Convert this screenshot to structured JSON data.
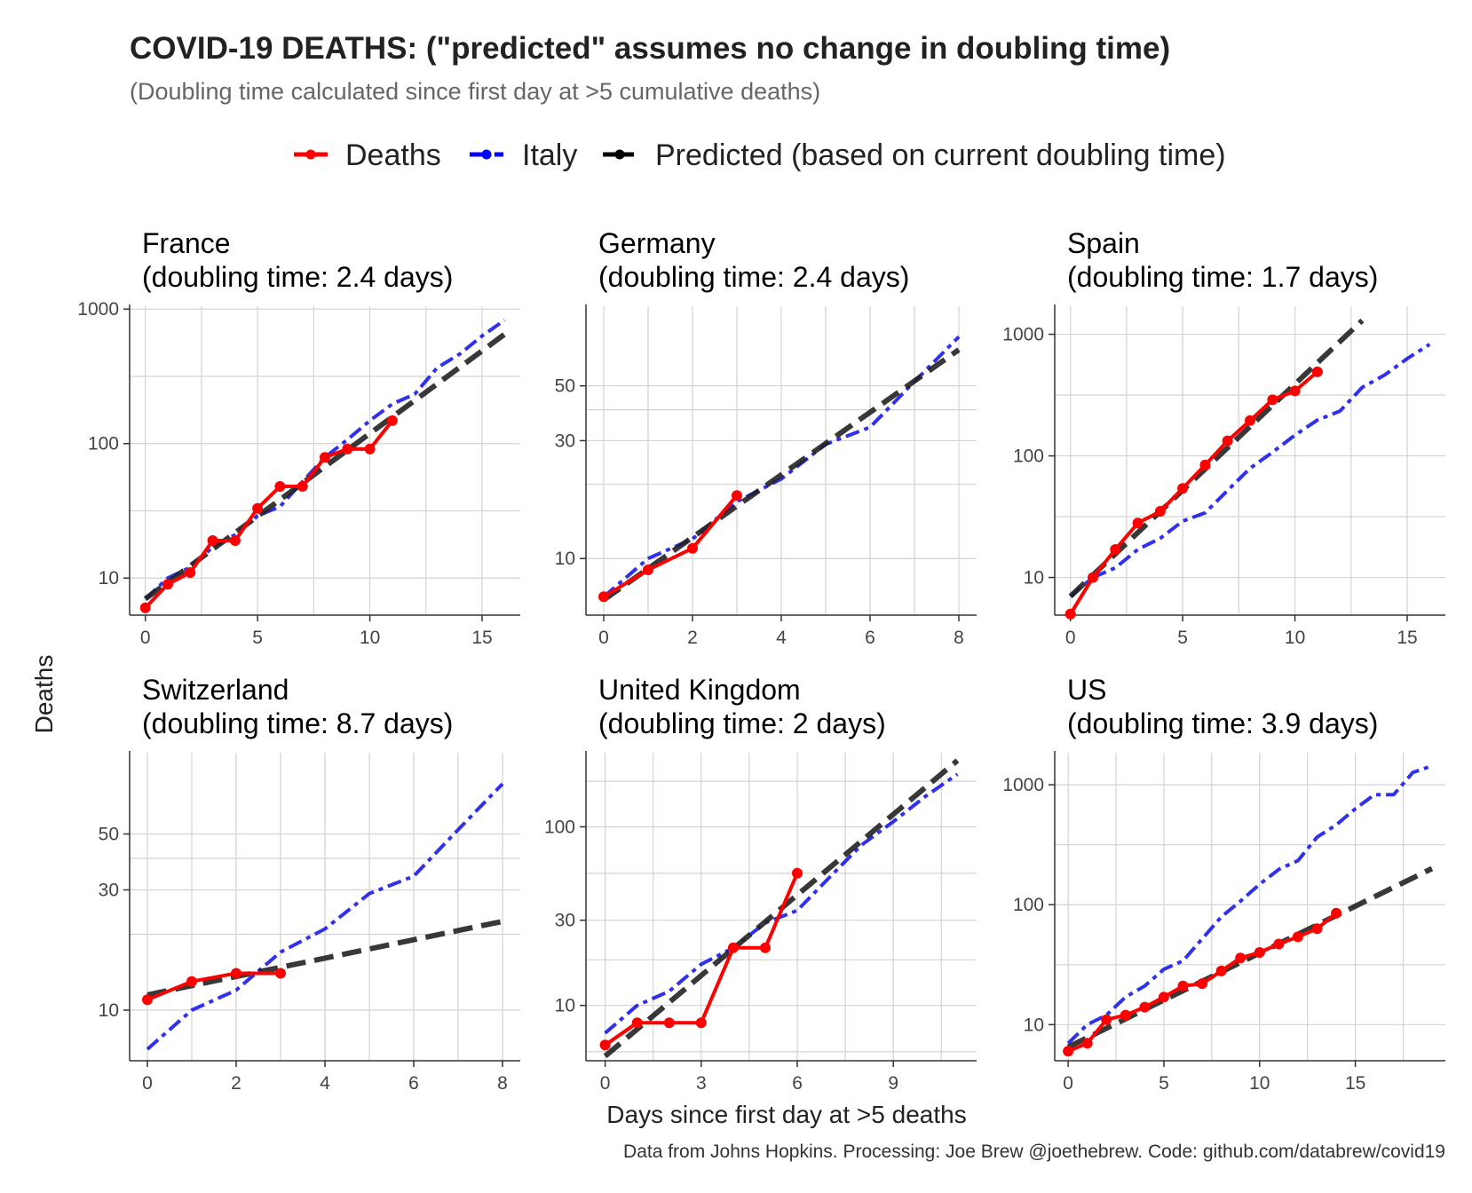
{
  "title": "COVID-19 DEATHS: (\"predicted\" assumes no change in doubling time)",
  "subtitle": "(Doubling time calculated since first day at >5 cumulative deaths)",
  "legend": [
    {
      "name": "Deaths",
      "color": "#ff0000",
      "dash": "solid"
    },
    {
      "name": "Italy",
      "color": "#0000ff",
      "dash": "dashdot"
    },
    {
      "name": "Predicted (based on current doubling time)",
      "color": "#000000",
      "dash": "dashed"
    }
  ],
  "xlabel": "Days since first day at >5 deaths",
  "ylabel": "Deaths",
  "caption": "Data from Johns Hopkins. Processing: Joe Brew @joethebrew. Code: github.com/databrew/covid19",
  "chart_data": [
    {
      "type": "line",
      "country": "France",
      "title_line1": "France",
      "title_line2": "(doubling time: 2.4 days)",
      "xlim": [
        -0.7,
        16.7
      ],
      "xticks": [
        0,
        5,
        10,
        15
      ],
      "ylog": true,
      "ylim": [
        5.3,
        1050
      ],
      "yticks": [
        10,
        100,
        1000
      ],
      "yticklabels": [
        "10",
        "100",
        "1000"
      ],
      "yminor": [
        31.6,
        316
      ],
      "series": [
        {
          "name": "Deaths",
          "x": [
            0,
            1,
            2,
            3,
            4,
            5,
            6,
            7,
            8,
            9,
            10,
            11
          ],
          "y": [
            6,
            9,
            11,
            19,
            19,
            33,
            48,
            48,
            79,
            91,
            91,
            148
          ]
        },
        {
          "name": "Italy",
          "x": [
            0,
            1,
            2,
            3,
            4,
            5,
            6,
            7,
            8,
            9,
            10,
            11,
            12,
            13,
            14,
            15,
            16
          ],
          "y": [
            7,
            10,
            12,
            17,
            21,
            29,
            34,
            52,
            79,
            107,
            148,
            197,
            233,
            366,
            463,
            631,
            827
          ]
        },
        {
          "name": "Predicted (based on current doubling time)",
          "x": [
            0,
            16
          ],
          "y": [
            7,
            650
          ]
        }
      ]
    },
    {
      "type": "line",
      "country": "Germany",
      "title_line1": "Germany",
      "title_line2": "(doubling time: 2.4 days)",
      "xlim": [
        -0.4,
        8.4
      ],
      "xticks": [
        0,
        2,
        4,
        6,
        8
      ],
      "ylog": true,
      "ylim": [
        5.9,
        105
      ],
      "yticks": [
        10,
        30,
        50
      ],
      "yticklabels": [
        "10",
        "30",
        "50"
      ],
      "yminor": [
        20,
        40
      ],
      "series": [
        {
          "name": "Deaths",
          "x": [
            0,
            1,
            2,
            3
          ],
          "y": [
            7,
            9,
            11,
            18
          ]
        },
        {
          "name": "Italy",
          "x": [
            0,
            1,
            2,
            3,
            4,
            5,
            6,
            7,
            8
          ],
          "y": [
            7,
            10,
            12,
            17,
            21,
            29,
            34,
            52,
            79
          ]
        },
        {
          "name": "Predicted (based on current doubling time)",
          "x": [
            0,
            8
          ],
          "y": [
            6.8,
            70
          ]
        }
      ]
    },
    {
      "type": "line",
      "country": "Spain",
      "title_line1": "Spain",
      "title_line2": "(doubling time: 1.7 days)",
      "xlim": [
        -0.7,
        16.7
      ],
      "xticks": [
        0,
        5,
        10,
        15
      ],
      "ylog": true,
      "ylim": [
        4.9,
        1700
      ],
      "yticks": [
        10,
        100,
        1000
      ],
      "yticklabels": [
        "10",
        "100",
        "1000"
      ],
      "yminor": [
        31.6,
        316
      ],
      "series": [
        {
          "name": "Deaths",
          "x": [
            0,
            1,
            2,
            3,
            4,
            5,
            6,
            7,
            8,
            9,
            10,
            11
          ],
          "y": [
            5,
            10,
            17,
            28,
            35,
            54,
            84,
            133,
            195,
            289,
            342,
            491
          ]
        },
        {
          "name": "Italy",
          "x": [
            0,
            1,
            2,
            3,
            4,
            5,
            6,
            7,
            8,
            9,
            10,
            11,
            12,
            13,
            14,
            15,
            16
          ],
          "y": [
            7,
            10,
            12,
            17,
            21,
            29,
            34,
            52,
            79,
            107,
            148,
            197,
            233,
            366,
            463,
            631,
            827
          ]
        },
        {
          "name": "Predicted (based on current doubling time)",
          "x": [
            0,
            13
          ],
          "y": [
            7,
            1300
          ]
        }
      ]
    },
    {
      "type": "line",
      "country": "Switzerland",
      "title_line1": "Switzerland",
      "title_line2": "(doubling time: 8.7 days)",
      "xlim": [
        -0.4,
        8.4
      ],
      "xticks": [
        0,
        2,
        4,
        6,
        8
      ],
      "ylog": true,
      "ylim": [
        6.3,
        105
      ],
      "yticks": [
        10,
        30,
        50
      ],
      "yticklabels": [
        "10",
        "30",
        "50"
      ],
      "yminor": [
        20,
        40
      ],
      "series": [
        {
          "name": "Deaths",
          "x": [
            0,
            1,
            2,
            3
          ],
          "y": [
            11,
            13,
            14,
            14
          ]
        },
        {
          "name": "Italy",
          "x": [
            0,
            1,
            2,
            3,
            4,
            5,
            6,
            7,
            8
          ],
          "y": [
            7,
            10,
            12,
            17,
            21,
            29,
            34,
            52,
            79
          ]
        },
        {
          "name": "Predicted (based on current doubling time)",
          "x": [
            0,
            8
          ],
          "y": [
            11.5,
            22.5
          ]
        }
      ]
    },
    {
      "type": "line",
      "country": "United Kingdom",
      "title_line1": "United Kingdom",
      "title_line2": "(doubling time: 2 days)",
      "xlim": [
        -0.6,
        11.6
      ],
      "xticks": [
        0,
        3,
        6,
        9
      ],
      "ylog": true,
      "ylim": [
        4.9,
        260
      ],
      "yticks": [
        10,
        30,
        100
      ],
      "yticklabels": [
        "10",
        "30",
        "100"
      ],
      "yminor": [
        5.5,
        18,
        55,
        180
      ],
      "series": [
        {
          "name": "Deaths",
          "x": [
            0,
            1,
            2,
            3,
            4,
            5,
            6
          ],
          "y": [
            6,
            8,
            8,
            8,
            21,
            21,
            55
          ]
        },
        {
          "name": "Italy",
          "x": [
            0,
            1,
            2,
            3,
            4,
            5,
            6,
            7,
            8,
            9,
            10,
            11
          ],
          "y": [
            7,
            10,
            12,
            17,
            21,
            29,
            34,
            52,
            79,
            107,
            148,
            197
          ]
        },
        {
          "name": "Predicted (based on current doubling time)",
          "x": [
            0,
            11
          ],
          "y": [
            5.2,
            235
          ]
        }
      ]
    },
    {
      "type": "line",
      "country": "US",
      "title_line1": "US",
      "title_line2": "(doubling time: 3.9 days)",
      "xlim": [
        -0.7,
        19.7
      ],
      "xticks": [
        0,
        5,
        10,
        15
      ],
      "ylog": true,
      "ylim": [
        5,
        1850
      ],
      "yticks": [
        10,
        100,
        1000
      ],
      "yticklabels": [
        "10",
        "100",
        "1000"
      ],
      "yminor": [
        31.6,
        316
      ],
      "series": [
        {
          "name": "Deaths",
          "x": [
            0,
            1,
            2,
            3,
            4,
            5,
            6,
            7,
            8,
            9,
            10,
            11,
            12,
            13,
            14
          ],
          "y": [
            6,
            7,
            11,
            12,
            14,
            17,
            21,
            22,
            28,
            36,
            40,
            47,
            54,
            63,
            85
          ]
        },
        {
          "name": "Italy",
          "x": [
            0,
            1,
            2,
            3,
            4,
            5,
            6,
            7,
            8,
            9,
            10,
            11,
            12,
            13,
            14,
            15,
            16,
            17,
            18,
            19
          ],
          "y": [
            7,
            10,
            12,
            17,
            21,
            29,
            34,
            52,
            79,
            107,
            148,
            197,
            233,
            366,
            463,
            631,
            827,
            827,
            1266,
            1441
          ]
        },
        {
          "name": "Predicted (based on current doubling time)",
          "x": [
            0,
            19
          ],
          "y": [
            6.5,
            200
          ]
        }
      ]
    }
  ]
}
